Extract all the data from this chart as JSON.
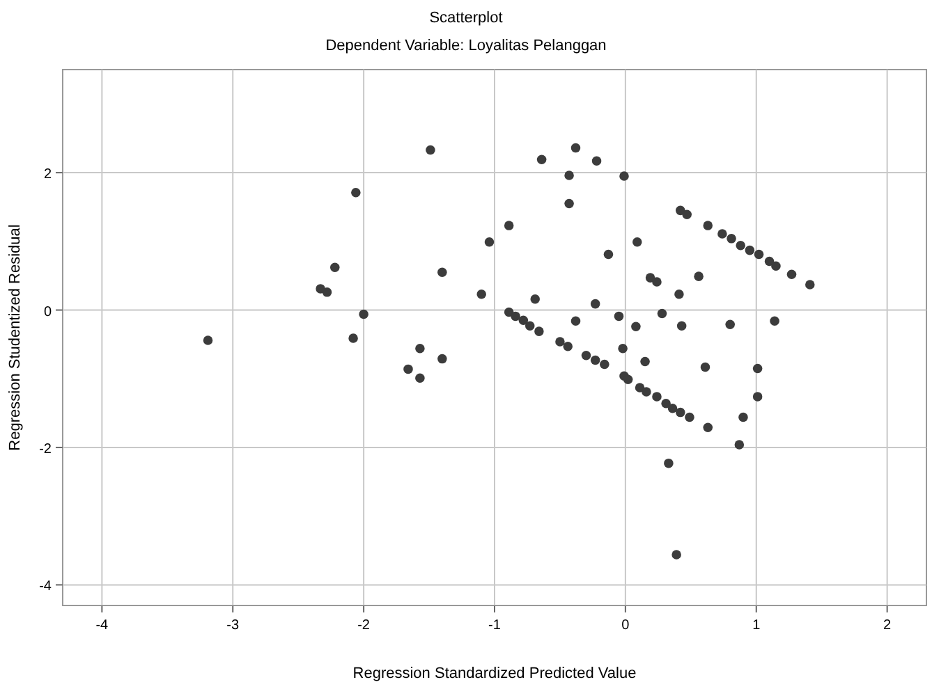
{
  "chart_data": {
    "type": "scatter",
    "title": "Scatterplot",
    "subtitle": "Dependent Variable: Loyalitas Pelanggan",
    "xlabel": "Regression Standardized Predicted Value",
    "ylabel": "Regression Studentized Residual",
    "xlim": [
      -4.3,
      2.3
    ],
    "ylim": [
      -4.3,
      3.5
    ],
    "xticks": [
      -4,
      -3,
      -2,
      -1,
      0,
      1,
      2
    ],
    "yticks": [
      -4,
      -2,
      0,
      2
    ],
    "grid": true,
    "marker": "circle",
    "series": [
      {
        "color": "#3c3c3c",
        "x": [
          -3.19,
          -1.49,
          -2.06,
          -2.22,
          -2.33,
          -2.28,
          -2.0,
          -2.08,
          -1.4,
          -1.57,
          -1.4,
          -1.66,
          -1.57,
          -1.1,
          -1.04,
          -0.89,
          -0.69,
          -0.64,
          -0.38,
          -0.22,
          -0.43,
          -0.01,
          -0.43,
          0.42,
          0.47,
          0.63,
          0.74,
          0.81,
          0.88,
          0.95,
          1.02,
          1.1,
          1.15,
          1.27,
          1.41,
          0.09,
          -0.13,
          0.19,
          0.24,
          0.56,
          0.41,
          -0.23,
          -0.38,
          -0.05,
          0.08,
          0.28,
          0.43,
          0.8,
          1.14,
          -0.02,
          0.15,
          0.61,
          1.01,
          1.01,
          0.9,
          0.63,
          0.87,
          0.33,
          0.39,
          -0.89,
          -0.84,
          -0.78,
          -0.73,
          -0.66,
          -0.5,
          -0.44,
          -0.3,
          -0.23,
          -0.16,
          -0.01,
          0.02,
          0.11,
          0.16,
          0.24,
          0.31,
          0.36,
          0.42,
          0.49
        ],
        "values": [
          -0.44,
          2.33,
          1.71,
          0.62,
          0.31,
          0.26,
          -0.06,
          -0.41,
          0.55,
          -0.56,
          -0.71,
          -0.86,
          -0.99,
          0.23,
          0.99,
          1.23,
          0.16,
          2.19,
          2.36,
          2.17,
          1.96,
          1.95,
          1.55,
          1.45,
          1.39,
          1.23,
          1.11,
          1.04,
          0.94,
          0.87,
          0.81,
          0.71,
          0.64,
          0.52,
          0.37,
          0.99,
          0.81,
          0.47,
          0.41,
          0.49,
          0.23,
          0.09,
          -0.16,
          -0.09,
          -0.24,
          -0.05,
          -0.23,
          -0.21,
          -0.16,
          -0.56,
          -0.75,
          -0.83,
          -0.85,
          -1.26,
          -1.56,
          -1.71,
          -1.96,
          -2.23,
          -3.56,
          -0.03,
          -0.09,
          -0.15,
          -0.23,
          -0.31,
          -0.46,
          -0.53,
          -0.66,
          -0.73,
          -0.79,
          -0.96,
          -1.01,
          -1.13,
          -1.19,
          -1.26,
          -1.36,
          -1.43,
          -1.49,
          -1.56
        ]
      }
    ]
  }
}
